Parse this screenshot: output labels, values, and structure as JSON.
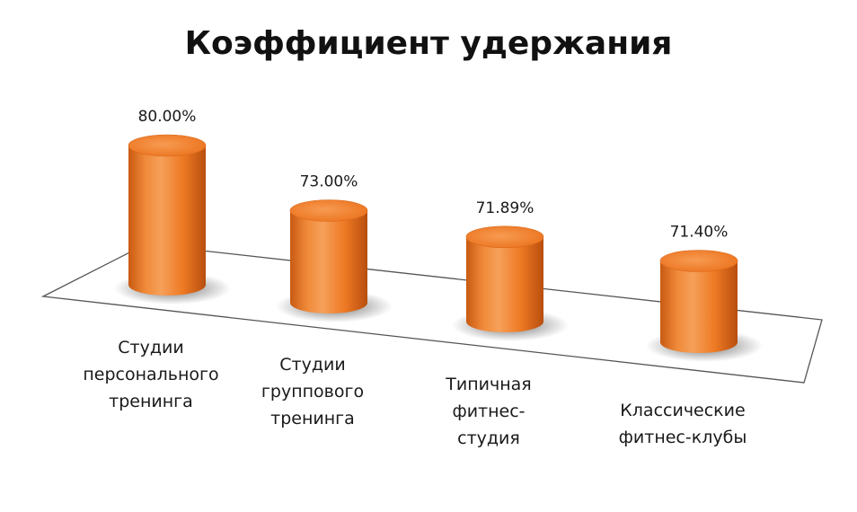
{
  "chart_data": {
    "type": "bar",
    "title": "Коэффициент удержания",
    "categories": [
      [
        "Студии",
        "персонального",
        "тренинга"
      ],
      [
        "Студии",
        "группового",
        "тренинга"
      ],
      [
        "Типичная",
        "фитнес-",
        "студия"
      ],
      [
        "Классические",
        "фитнес-клубы"
      ]
    ],
    "values": [
      80.0,
      73.0,
      71.89,
      71.4
    ],
    "value_labels": [
      "80.00%",
      "73.00%",
      "71.89%",
      "71.40%"
    ],
    "ylim": [
      70,
      80
    ],
    "grid": false,
    "legend": "none",
    "style": "3d-cylinder",
    "bar_color": "#F07A22"
  }
}
